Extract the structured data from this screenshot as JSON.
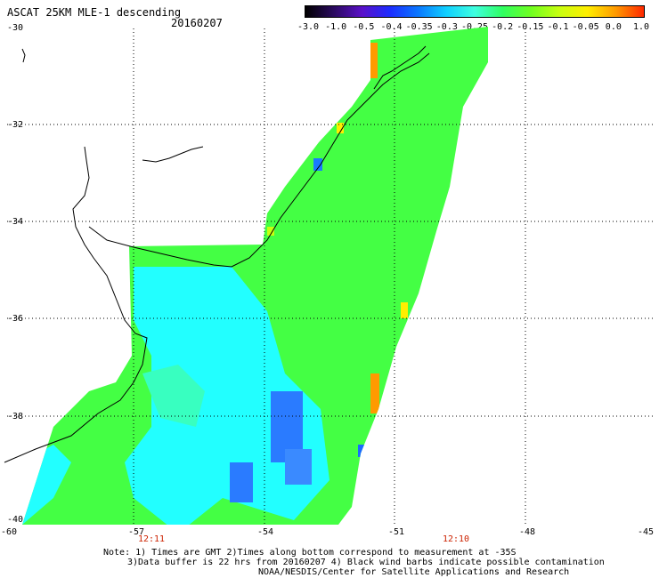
{
  "title": "ASCAT 25KM MLE-1 descending",
  "date": "20160207",
  "colorbar": {
    "tick_labels": [
      "-3.0",
      "-1.0",
      "-0.5",
      "-0.4",
      "-0.35",
      "-0.3",
      "-0.25",
      "-0.2",
      "-0.15",
      "-0.1",
      "-0.05",
      "0.0",
      "1.0"
    ],
    "colors": [
      "#000000",
      "#2a0a5e",
      "#5a10c8",
      "#1c2cff",
      "#0a78ff",
      "#10d0ff",
      "#40ffe0",
      "#30ff60",
      "#70ff20",
      "#c8ff10",
      "#ffee00",
      "#ff9a00",
      "#ff2800"
    ]
  },
  "axes": {
    "lat_labels": [
      "-30",
      "-32",
      "-34",
      "-36",
      "-38",
      "-40"
    ],
    "lon_labels": [
      "-60",
      "-57",
      "-54",
      "-51",
      "-48",
      "-45"
    ],
    "lat_range": [
      -40,
      -30
    ],
    "lon_range": [
      -60,
      -45
    ]
  },
  "time_labels": [
    "12:11",
    "12:10"
  ],
  "notes": [
    "Note: 1) Times are GMT 2)Times along bottom correspond to measurement at -35S",
    "3)Data buffer is 22 hrs from 20160207 4) Black wind barbs indicate possible contamination",
    "NOAA/NESDIS/Center for Satellite Applications and Research"
  ],
  "colors": {
    "swath_base": "#44ff44",
    "low_region": "#22ffff",
    "very_low_region": "#2a7bff",
    "high_edge": "#ff9a00",
    "coastline": "#000000",
    "grid": "#000000"
  }
}
